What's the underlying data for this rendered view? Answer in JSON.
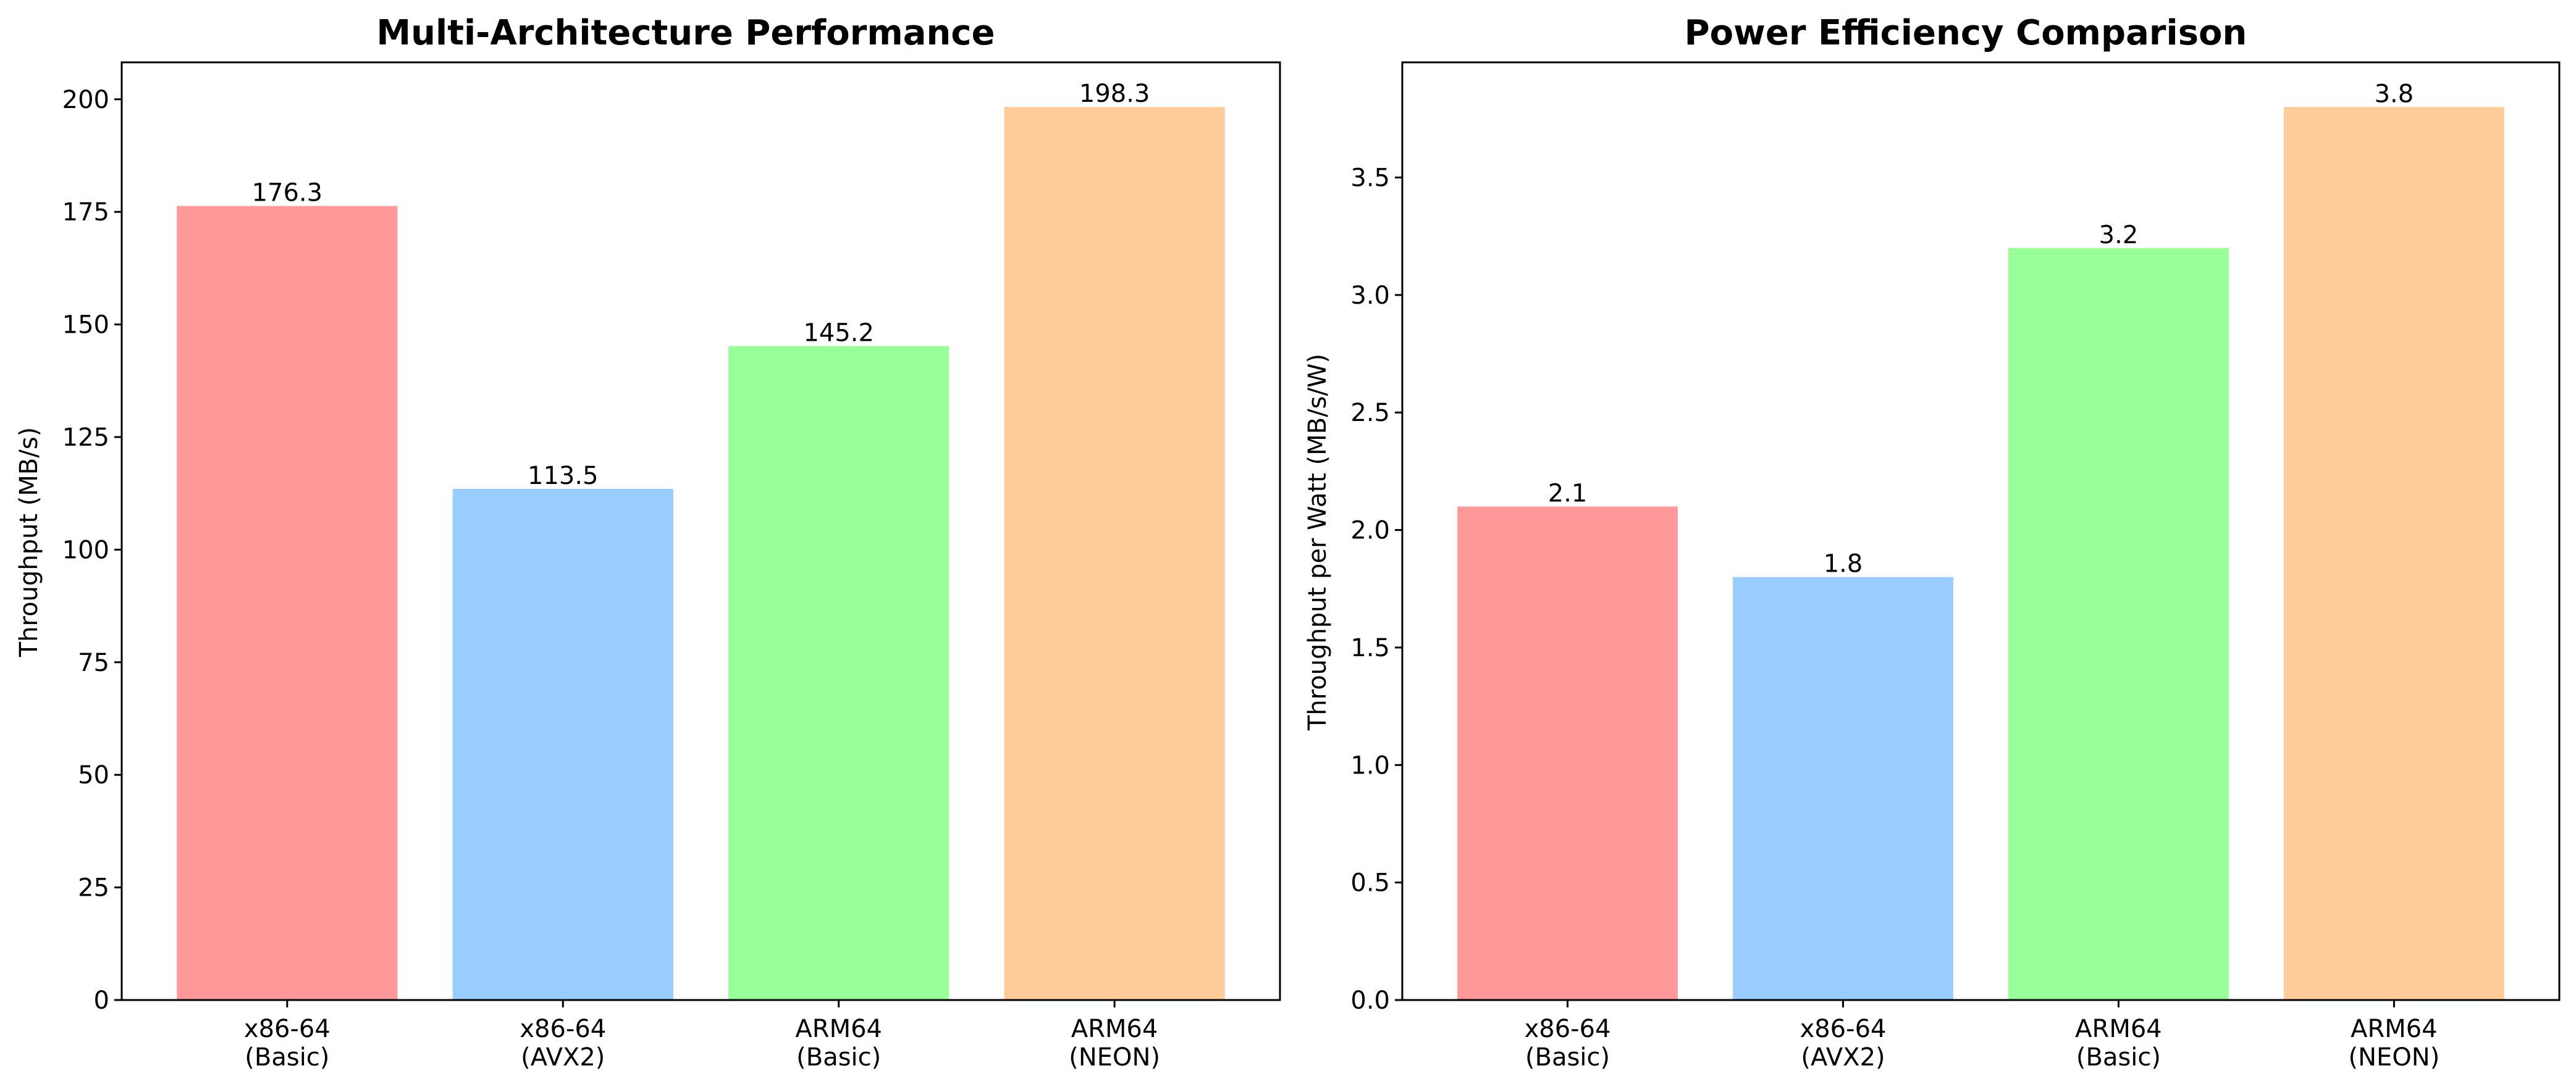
{
  "charts": [
    {
      "title": "Multi-Architecture Performance",
      "ylabel": "Throughput (MB/s)"
    },
    {
      "title": "Power Efficiency Comparison",
      "ylabel": "Throughput per Watt (MB/s/W)"
    }
  ],
  "chart_data": [
    {
      "type": "bar",
      "title": "Multi-Architecture Performance",
      "xlabel": "",
      "ylabel": "Throughput (MB/s)",
      "categories": [
        [
          "x86-64",
          "(Basic)"
        ],
        [
          "x86-64",
          "(AVX2)"
        ],
        [
          "ARM64",
          "(Basic)"
        ],
        [
          "ARM64",
          "(NEON)"
        ]
      ],
      "values": [
        176.3,
        113.5,
        145.2,
        198.3
      ],
      "value_labels": [
        "176.3",
        "113.5",
        "145.2",
        "198.3"
      ],
      "colors": [
        "#ff9999",
        "#99ccff",
        "#99ff99",
        "#ffcc99"
      ],
      "ylim": [
        0,
        208.2
      ],
      "yticks": [
        0,
        25,
        50,
        75,
        100,
        125,
        150,
        175,
        200
      ],
      "ytick_labels": [
        "0",
        "25",
        "50",
        "75",
        "100",
        "125",
        "150",
        "175",
        "200"
      ],
      "grid": false,
      "legend": "none"
    },
    {
      "type": "bar",
      "title": "Power Efficiency Comparison",
      "xlabel": "",
      "ylabel": "Throughput per Watt (MB/s/W)",
      "categories": [
        [
          "x86-64",
          "(Basic)"
        ],
        [
          "x86-64",
          "(AVX2)"
        ],
        [
          "ARM64",
          "(Basic)"
        ],
        [
          "ARM64",
          "(NEON)"
        ]
      ],
      "values": [
        2.1,
        1.8,
        3.2,
        3.8
      ],
      "value_labels": [
        "2.1",
        "1.8",
        "3.2",
        "3.8"
      ],
      "colors": [
        "#ff9999",
        "#99ccff",
        "#99ff99",
        "#ffcc99"
      ],
      "ylim": [
        0,
        3.99
      ],
      "yticks": [
        0,
        0.5,
        1,
        1.5,
        2,
        2.5,
        3,
        3.5
      ],
      "ytick_labels": [
        "0.0",
        "0.5",
        "1.0",
        "1.5",
        "2.0",
        "2.5",
        "3.0",
        "3.5"
      ],
      "grid": false,
      "legend": "none"
    }
  ]
}
